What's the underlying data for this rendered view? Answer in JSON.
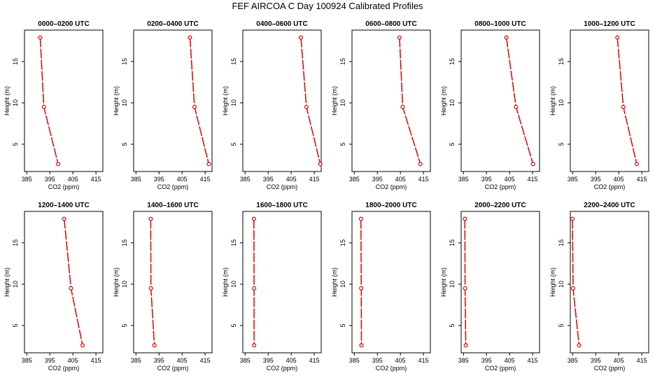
{
  "title": "FEF AIRCOA C  Day 100924  Calibrated Profiles",
  "colors": {
    "profile": "#dd0000",
    "axis": "#000000"
  },
  "chart_data": [
    {
      "type": "line",
      "title": "0000–0200 UTC",
      "xlabel": "CO2 (ppm)",
      "ylabel": "Height (m)",
      "xlim": [
        384,
        418
      ],
      "ylim": [
        1.7,
        18.8
      ],
      "xticks": [
        385,
        395,
        405,
        415
      ],
      "yticks": [
        5,
        10,
        15
      ],
      "series": [
        {
          "x": [
            390.8,
            392.4,
            398.6
          ],
          "y": [
            17.9,
            9.5,
            2.6
          ]
        }
      ]
    },
    {
      "type": "line",
      "title": "0200–0400 UTC",
      "xlabel": "CO2 (ppm)",
      "ylabel": "Height (m)",
      "xlim": [
        384,
        418
      ],
      "ylim": [
        1.7,
        18.8
      ],
      "xticks": [
        385,
        395,
        405,
        415
      ],
      "yticks": [
        5,
        10,
        15
      ],
      "series": [
        {
          "x": [
            408.4,
            410.4,
            416.6
          ],
          "y": [
            17.9,
            9.5,
            2.6
          ]
        }
      ]
    },
    {
      "type": "line",
      "title": "0400–0600 UTC",
      "xlabel": "CO2 (ppm)",
      "ylabel": "Height (m)",
      "xlim": [
        384,
        418
      ],
      "ylim": [
        1.7,
        18.8
      ],
      "xticks": [
        385,
        395,
        405,
        415
      ],
      "yticks": [
        5,
        10,
        15
      ],
      "series": [
        {
          "x": [
            409.2,
            411.6,
            417.6
          ],
          "y": [
            17.9,
            9.5,
            2.6
          ]
        }
      ]
    },
    {
      "type": "line",
      "title": "0600–0800 UTC",
      "xlabel": "CO2 (ppm)",
      "ylabel": "Height (m)",
      "xlim": [
        384,
        418
      ],
      "ylim": [
        1.7,
        18.8
      ],
      "xticks": [
        385,
        395,
        405,
        415
      ],
      "yticks": [
        5,
        10,
        15
      ],
      "series": [
        {
          "x": [
            404.6,
            406.0,
            413.7
          ],
          "y": [
            17.9,
            9.5,
            2.6
          ]
        }
      ]
    },
    {
      "type": "line",
      "title": "0800–1000 UTC",
      "xlabel": "CO2 (ppm)",
      "ylabel": "Height (m)",
      "xlim": [
        384,
        418
      ],
      "ylim": [
        1.7,
        18.8
      ],
      "xticks": [
        385,
        395,
        405,
        415
      ],
      "yticks": [
        5,
        10,
        15
      ],
      "series": [
        {
          "x": [
            403.6,
            407.8,
            415.2
          ],
          "y": [
            17.9,
            9.5,
            2.6
          ]
        }
      ]
    },
    {
      "type": "line",
      "title": "1000–1200 UTC",
      "xlabel": "CO2 (ppm)",
      "ylabel": "Height (m)",
      "xlim": [
        384,
        418
      ],
      "ylim": [
        1.7,
        18.8
      ],
      "xticks": [
        385,
        395,
        405,
        415
      ],
      "yticks": [
        5,
        10,
        15
      ],
      "series": [
        {
          "x": [
            404.4,
            407.0,
            412.8
          ],
          "y": [
            17.9,
            9.5,
            2.6
          ]
        }
      ]
    },
    {
      "type": "line",
      "title": "1200–1400 UTC",
      "xlabel": "CO2 (ppm)",
      "ylabel": "Height (m)",
      "xlim": [
        384,
        418
      ],
      "ylim": [
        1.7,
        18.8
      ],
      "xticks": [
        385,
        395,
        405,
        415
      ],
      "yticks": [
        5,
        10,
        15
      ],
      "series": [
        {
          "x": [
            401.2,
            404.2,
            409.2
          ],
          "y": [
            17.9,
            9.5,
            2.6
          ]
        }
      ]
    },
    {
      "type": "line",
      "title": "1400–1600 UTC",
      "xlabel": "CO2 (ppm)",
      "ylabel": "Height (m)",
      "xlim": [
        384,
        418
      ],
      "ylim": [
        1.7,
        18.8
      ],
      "xticks": [
        385,
        395,
        405,
        415
      ],
      "yticks": [
        5,
        10,
        15
      ],
      "series": [
        {
          "x": [
            391.4,
            391.5,
            393.0
          ],
          "y": [
            17.9,
            9.5,
            2.6
          ]
        }
      ]
    },
    {
      "type": "line",
      "title": "1600–1800 UTC",
      "xlabel": "CO2 (ppm)",
      "ylabel": "Height (m)",
      "xlim": [
        384,
        418
      ],
      "ylim": [
        1.7,
        18.8
      ],
      "xticks": [
        385,
        395,
        405,
        415
      ],
      "yticks": [
        5,
        10,
        15
      ],
      "series": [
        {
          "x": [
            388.8,
            388.9,
            388.9
          ],
          "y": [
            17.9,
            9.5,
            2.6
          ]
        }
      ]
    },
    {
      "type": "line",
      "title": "1800–2000 UTC",
      "xlabel": "CO2 (ppm)",
      "ylabel": "Height (m)",
      "xlim": [
        384,
        418
      ],
      "ylim": [
        1.7,
        18.8
      ],
      "xticks": [
        385,
        395,
        405,
        415
      ],
      "yticks": [
        5,
        10,
        15
      ],
      "series": [
        {
          "x": [
            387.9,
            388.0,
            388.1
          ],
          "y": [
            17.9,
            9.5,
            2.6
          ]
        }
      ]
    },
    {
      "type": "line",
      "title": "2000–2200 UTC",
      "xlabel": "CO2 (ppm)",
      "ylabel": "Height (m)",
      "xlim": [
        384,
        418
      ],
      "ylim": [
        1.7,
        18.8
      ],
      "xticks": [
        385,
        395,
        405,
        415
      ],
      "yticks": [
        5,
        10,
        15
      ],
      "series": [
        {
          "x": [
            385.6,
            385.7,
            386.0
          ],
          "y": [
            17.9,
            9.5,
            2.6
          ]
        }
      ]
    },
    {
      "type": "line",
      "title": "2200–2400 UTC",
      "xlabel": "CO2 (ppm)",
      "ylabel": "Height (m)",
      "xlim": [
        384,
        418
      ],
      "ylim": [
        1.7,
        18.8
      ],
      "xticks": [
        385,
        395,
        405,
        415
      ],
      "yticks": [
        5,
        10,
        15
      ],
      "series": [
        {
          "x": [
            384.9,
            385.2,
            387.8
          ],
          "y": [
            17.9,
            9.5,
            2.6
          ]
        }
      ]
    }
  ]
}
